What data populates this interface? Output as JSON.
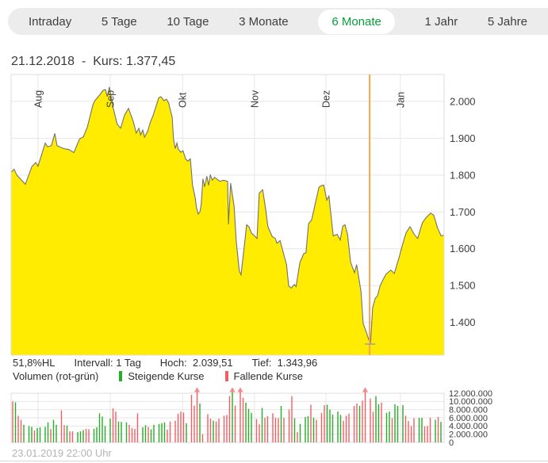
{
  "tabs": [
    {
      "label": "Intraday",
      "selected": false
    },
    {
      "label": "5 Tage",
      "selected": false
    },
    {
      "label": "10 Tage",
      "selected": false
    },
    {
      "label": "3 Monate",
      "selected": false
    },
    {
      "label": "6 Monate",
      "selected": true
    },
    {
      "label": "1 Jahr",
      "selected": false
    },
    {
      "label": "5 Jahre",
      "selected": false
    }
  ],
  "header": {
    "title": "21.12.2018  -  Kurs: 1.377,45"
  },
  "stats": [
    {
      "name": "range-percent",
      "text": "51,8%HL"
    },
    {
      "name": "interval",
      "text": "Intervall: 1 Tag"
    },
    {
      "name": "high",
      "text": "Hoch:  2.039,51"
    },
    {
      "name": "low",
      "text": "Tief:  1.343,96"
    }
  ],
  "volume_legend": {
    "title": "Volumen (rot-grün)",
    "items": [
      {
        "label": "Steigende Kurse",
        "color": "#2aab2a"
      },
      {
        "label": "Fallende Kurse",
        "color": "#f25f63"
      }
    ]
  },
  "footer": {
    "timestamp": "23.01.2019 22:00 Uhr"
  },
  "colors": {
    "accent_green": "#089e3c",
    "chart_fill": "#ffec00",
    "chart_line": "#73716f",
    "marker_orange": "#f7a64b",
    "marker_tick": "#9aa0ac",
    "volume_up": "#2aab2a",
    "volume_down": "#f25f63",
    "clip_arrow": "#f4888a",
    "grid": "#e6e6e6",
    "border": "#dcdcdc",
    "text_dark": "#3c3c3b",
    "text_muted": "#b4b4b4"
  },
  "chart_data": [
    {
      "type": "area",
      "name": "Kurs 6 Monate",
      "title": "21.12.2018 - Kurs: 1.377,45",
      "high": 2039.51,
      "low": 1343.96,
      "x_axis": {
        "months": [
          "Aug",
          "Sep",
          "Okt",
          "Nov",
          "Dez",
          "Jan"
        ],
        "month_fractions": [
          0.062,
          0.229,
          0.396,
          0.562,
          0.727,
          0.899
        ]
      },
      "y_axis": {
        "range": [
          1311,
          2073
        ],
        "ticks": [
          1400,
          1500,
          1600,
          1700,
          1800,
          1900,
          2000
        ],
        "tick_labels": [
          "1.400",
          "1.500",
          "1.600",
          "1.700",
          "1.800",
          "1.900",
          "2.000"
        ]
      },
      "selected_point": {
        "date": "21.12.2018",
        "kurs": "1.377,45",
        "fraction": 0.828,
        "tick_value": 1341
      },
      "points": [
        [
          0,
          1808
        ],
        [
          0.007,
          1816
        ],
        [
          0.013,
          1800
        ],
        [
          0.033,
          1775
        ],
        [
          0.048,
          1823
        ],
        [
          0.057,
          1834
        ],
        [
          0.062,
          1824
        ],
        [
          0.079,
          1887
        ],
        [
          0.084,
          1877
        ],
        [
          0.093,
          1880
        ],
        [
          0.101,
          1913
        ],
        [
          0.106,
          1880
        ],
        [
          0.121,
          1872
        ],
        [
          0.134,
          1869
        ],
        [
          0.145,
          1861
        ],
        [
          0.158,
          1898
        ],
        [
          0.167,
          1904
        ],
        [
          0.176,
          1930
        ],
        [
          0.189,
          1991
        ],
        [
          0.194,
          2003
        ],
        [
          0.205,
          2018
        ],
        [
          0.212,
          2030
        ],
        [
          0.218,
          2032
        ],
        [
          0.222,
          2013
        ],
        [
          0.227,
          2039
        ],
        [
          0.236,
          1981
        ],
        [
          0.245,
          1938
        ],
        [
          0.253,
          1927
        ],
        [
          0.262,
          1963
        ],
        [
          0.271,
          1981
        ],
        [
          0.282,
          1946
        ],
        [
          0.289,
          1914
        ],
        [
          0.295,
          1927
        ],
        [
          0.299,
          1909
        ],
        [
          0.304,
          1922
        ],
        [
          0.308,
          1903
        ],
        [
          0.315,
          1918
        ],
        [
          0.322,
          1945
        ],
        [
          0.328,
          1962
        ],
        [
          0.341,
          2010
        ],
        [
          0.346,
          2013
        ],
        [
          0.353,
          2002
        ],
        [
          0.359,
          2006
        ],
        [
          0.364,
          1995
        ],
        [
          0.372,
          1957
        ],
        [
          0.375,
          1898
        ],
        [
          0.379,
          1872
        ],
        [
          0.383,
          1887
        ],
        [
          0.386,
          1870
        ],
        [
          0.392,
          1862
        ],
        [
          0.397,
          1866
        ],
        [
          0.403,
          1844
        ],
        [
          0.408,
          1838
        ],
        [
          0.414,
          1844
        ],
        [
          0.419,
          1772
        ],
        [
          0.425,
          1740
        ],
        [
          0.428,
          1712
        ],
        [
          0.432,
          1694
        ],
        [
          0.436,
          1700
        ],
        [
          0.439,
          1720
        ],
        [
          0.443,
          1790
        ],
        [
          0.447,
          1768
        ],
        [
          0.452,
          1797
        ],
        [
          0.456,
          1772
        ],
        [
          0.46,
          1800
        ],
        [
          0.465,
          1786
        ],
        [
          0.47,
          1794
        ],
        [
          0.482,
          1783
        ],
        [
          0.491,
          1786
        ],
        [
          0.5,
          1783
        ],
        [
          0.502,
          1666
        ],
        [
          0.507,
          1778
        ],
        [
          0.515,
          1715
        ],
        [
          0.52,
          1620
        ],
        [
          0.527,
          1540
        ],
        [
          0.531,
          1529
        ],
        [
          0.538,
          1600
        ],
        [
          0.544,
          1665
        ],
        [
          0.549,
          1660
        ],
        [
          0.555,
          1643
        ],
        [
          0.562,
          1635
        ],
        [
          0.568,
          1628
        ],
        [
          0.573,
          1751
        ],
        [
          0.581,
          1760
        ],
        [
          0.588,
          1707
        ],
        [
          0.593,
          1660
        ],
        [
          0.603,
          1633
        ],
        [
          0.61,
          1628
        ],
        [
          0.614,
          1615
        ],
        [
          0.621,
          1622
        ],
        [
          0.628,
          1592
        ],
        [
          0.636,
          1557
        ],
        [
          0.641,
          1499
        ],
        [
          0.647,
          1493
        ],
        [
          0.654,
          1503
        ],
        [
          0.658,
          1497
        ],
        [
          0.667,
          1563
        ],
        [
          0.676,
          1587
        ],
        [
          0.681,
          1589
        ],
        [
          0.687,
          1668
        ],
        [
          0.694,
          1678
        ],
        [
          0.711,
          1767
        ],
        [
          0.716,
          1771
        ],
        [
          0.722,
          1773
        ],
        [
          0.729,
          1732
        ],
        [
          0.734,
          1743
        ],
        [
          0.738,
          1700
        ],
        [
          0.744,
          1635
        ],
        [
          0.753,
          1639
        ],
        [
          0.76,
          1624
        ],
        [
          0.766,
          1661
        ],
        [
          0.771,
          1665
        ],
        [
          0.777,
          1639
        ],
        [
          0.784,
          1563
        ],
        [
          0.793,
          1535
        ],
        [
          0.798,
          1557
        ],
        [
          0.808,
          1484
        ],
        [
          0.813,
          1397
        ],
        [
          0.82,
          1375
        ],
        [
          0.826,
          1353
        ],
        [
          0.83,
          1344
        ],
        [
          0.835,
          1440
        ],
        [
          0.841,
          1466
        ],
        [
          0.846,
          1471
        ],
        [
          0.852,
          1499
        ],
        [
          0.859,
          1516
        ],
        [
          0.866,
          1531
        ],
        [
          0.877,
          1542
        ],
        [
          0.885,
          1533
        ],
        [
          0.896,
          1576
        ],
        [
          0.903,
          1607
        ],
        [
          0.912,
          1643
        ],
        [
          0.921,
          1660
        ],
        [
          0.932,
          1637
        ],
        [
          0.939,
          1628
        ],
        [
          0.95,
          1671
        ],
        [
          0.958,
          1684
        ],
        [
          0.969,
          1697
        ],
        [
          0.976,
          1691
        ],
        [
          0.985,
          1656
        ],
        [
          0.993,
          1635
        ],
        [
          1,
          1637
        ]
      ]
    },
    {
      "type": "bar",
      "name": "Volumen (rot-grün)",
      "unit": "millions",
      "clip_value": 12,
      "y_axis": {
        "range": [
          0,
          12000000
        ],
        "ticks": [
          0,
          2000000,
          4000000,
          6000000,
          8000000,
          10000000,
          12000000
        ],
        "tick_labels": [
          "0",
          "2.000.000",
          "4.000.000",
          "6.000.000",
          "8.000.000",
          "10.000.000",
          "12.000.000"
        ]
      },
      "bars": [
        [
          10,
          "r"
        ],
        [
          9.8,
          "g"
        ],
        [
          6.5,
          "r"
        ],
        [
          5.5,
          "r"
        ],
        [
          4.3,
          "g"
        ],
        [
          4,
          "g"
        ],
        [
          3.8,
          "g"
        ],
        [
          2.9,
          "r"
        ],
        [
          3.5,
          "g"
        ],
        [
          3.7,
          "g"
        ],
        [
          3.8,
          "g"
        ],
        [
          4.9,
          "g"
        ],
        [
          3.3,
          "r"
        ],
        [
          5.5,
          "g"
        ],
        [
          4.3,
          "g"
        ],
        [
          7.8,
          "r"
        ],
        [
          4.2,
          "r"
        ],
        [
          4.1,
          "g"
        ],
        [
          2.7,
          "r"
        ],
        [
          2.7,
          "r"
        ],
        [
          2.5,
          "g"
        ],
        [
          2.7,
          "g"
        ],
        [
          3,
          "g"
        ],
        [
          3.3,
          "r"
        ],
        [
          3.2,
          "r"
        ],
        [
          3.3,
          "g"
        ],
        [
          3.7,
          "g"
        ],
        [
          7.1,
          "g"
        ],
        [
          6.3,
          "g"
        ],
        [
          4,
          "g"
        ],
        [
          5.8,
          "g"
        ],
        [
          8.3,
          "r"
        ],
        [
          7.5,
          "r"
        ],
        [
          5.1,
          "g"
        ],
        [
          5,
          "g"
        ],
        [
          4.9,
          "g"
        ],
        [
          4.3,
          "r"
        ],
        [
          3.5,
          "r"
        ],
        [
          3.3,
          "r"
        ],
        [
          7.1,
          "r"
        ],
        [
          3.7,
          "g"
        ],
        [
          4.2,
          "g"
        ],
        [
          3.8,
          "r"
        ],
        [
          3.2,
          "g"
        ],
        [
          4.3,
          "g"
        ],
        [
          4.5,
          "g"
        ],
        [
          4.7,
          "g"
        ],
        [
          4.9,
          "g"
        ],
        [
          3.1,
          "r"
        ],
        [
          5.1,
          "r"
        ],
        [
          5.3,
          "r"
        ],
        [
          7,
          "r"
        ],
        [
          7.5,
          "r"
        ],
        [
          7.3,
          "r"
        ],
        [
          4.7,
          "g"
        ],
        [
          11.6,
          "r"
        ],
        [
          9,
          "r"
        ],
        [
          12.4,
          "r",
          1
        ],
        [
          9.5,
          "g"
        ],
        [
          2,
          "r"
        ],
        [
          6.9,
          "r"
        ],
        [
          5.8,
          "r"
        ],
        [
          5.3,
          "g"
        ],
        [
          5.1,
          "r"
        ],
        [
          5.8,
          "r"
        ],
        [
          6.5,
          "r"
        ],
        [
          6.7,
          "r"
        ],
        [
          11.3,
          "r"
        ],
        [
          12.4,
          "g",
          1
        ],
        [
          9,
          "r"
        ],
        [
          12.4,
          "r",
          1
        ],
        [
          10.9,
          "r"
        ],
        [
          9.7,
          "g"
        ],
        [
          8.2,
          "g"
        ],
        [
          7.2,
          "g"
        ],
        [
          5.7,
          "r"
        ],
        [
          4.4,
          "r"
        ],
        [
          8.4,
          "g"
        ],
        [
          6,
          "r"
        ],
        [
          6.4,
          "r"
        ],
        [
          7.1,
          "r"
        ],
        [
          6,
          "r"
        ],
        [
          5.9,
          "r"
        ],
        [
          8.9,
          "g"
        ],
        [
          6,
          "r"
        ],
        [
          8,
          "r"
        ],
        [
          11.3,
          "r"
        ],
        [
          5.9,
          "g"
        ],
        [
          2.5,
          "r"
        ],
        [
          4.5,
          "g"
        ],
        [
          6.2,
          "g"
        ],
        [
          6.4,
          "g"
        ],
        [
          9.2,
          "r"
        ],
        [
          6,
          "g"
        ],
        [
          5.5,
          "r"
        ],
        [
          7.2,
          "r"
        ],
        [
          9.1,
          "r"
        ],
        [
          9.2,
          "g"
        ],
        [
          8,
          "g"
        ],
        [
          6.8,
          "g"
        ],
        [
          7.5,
          "g"
        ],
        [
          6.7,
          "g"
        ],
        [
          5.3,
          "r"
        ],
        [
          6.5,
          "r"
        ],
        [
          7,
          "r"
        ],
        [
          8.9,
          "r"
        ],
        [
          9.5,
          "r"
        ],
        [
          8.9,
          "g"
        ],
        [
          10.2,
          "r"
        ],
        [
          12.4,
          "r",
          1
        ],
        [
          10.7,
          "r"
        ],
        [
          7.5,
          "r"
        ],
        [
          11.3,
          "g"
        ],
        [
          9.3,
          "g"
        ],
        [
          9.7,
          "r"
        ],
        [
          7.2,
          "g"
        ],
        [
          7.5,
          "g"
        ],
        [
          5.9,
          "r"
        ],
        [
          9.3,
          "g"
        ],
        [
          8.9,
          "g"
        ],
        [
          9.1,
          "g"
        ],
        [
          6.5,
          "r"
        ],
        [
          5.2,
          "r"
        ],
        [
          4,
          "r"
        ],
        [
          5.9,
          "r"
        ],
        [
          6,
          "g"
        ],
        [
          6,
          "g"
        ],
        [
          3.9,
          "r"
        ],
        [
          4,
          "r"
        ],
        [
          6,
          "r"
        ],
        [
          5.5,
          "g"
        ],
        [
          6.2,
          "r"
        ],
        [
          5,
          "g"
        ]
      ]
    }
  ]
}
